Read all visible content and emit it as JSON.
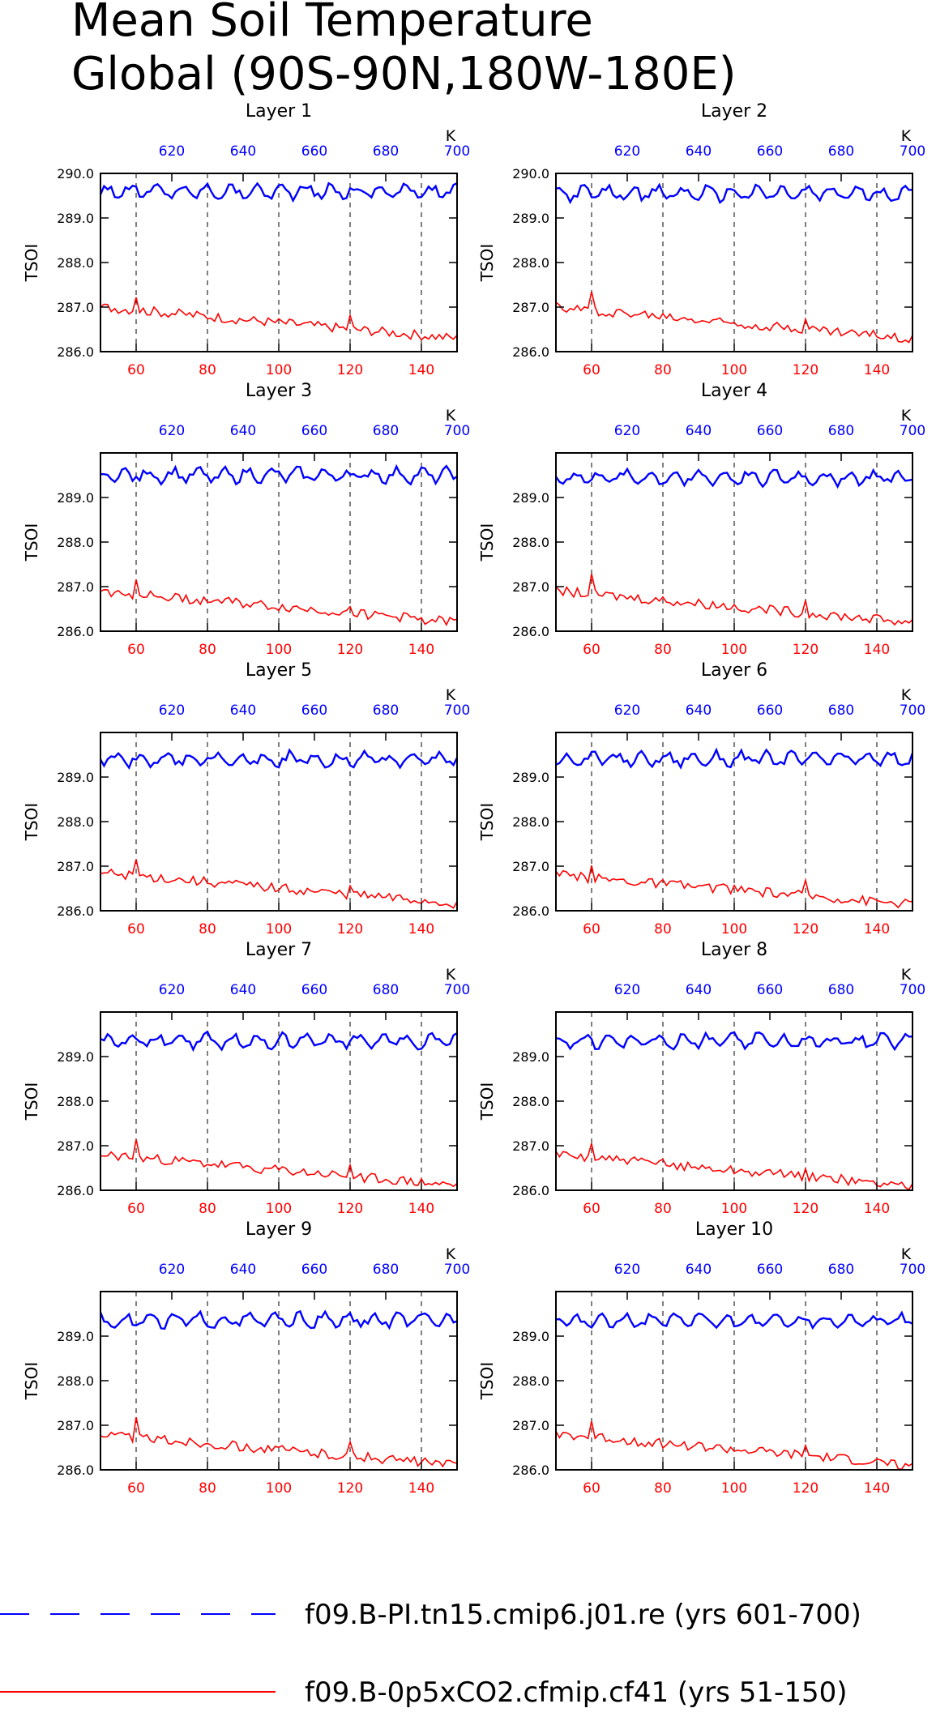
{
  "page": {
    "title_line1": "Mean Soil Temperature",
    "title_line2": "Global (90S-90N,180W-180E)"
  },
  "colors": {
    "series_a": "#0000ff",
    "series_b": "#ff0000",
    "axis": "#000000"
  },
  "legend": [
    {
      "name": "f09.B-PI.tn15.cmip6.j01.re (yrs 601-700)",
      "style": "dashed",
      "color": "#0000ff"
    },
    {
      "name": "f09.B-0p5xCO2.cfmip.cf41 (yrs 51-150)",
      "style": "solid",
      "color": "#ff0000"
    }
  ],
  "chart_data": [
    {
      "type": "line",
      "title": "Layer 1",
      "ylabel": "TSOI",
      "ylim": [
        286.0,
        290.0
      ],
      "yticks": [
        "286.0",
        "287.0",
        "288.0",
        "289.0",
        "290.0"
      ],
      "xlim": [
        50,
        150
      ],
      "xticks": [
        "60",
        "80",
        "100",
        "120",
        "140"
      ],
      "x2lim": [
        600,
        700
      ],
      "x2ticks": [
        "620",
        "640",
        "660",
        "680",
        "700"
      ],
      "x2unit": "K",
      "grid": "dashed vertical",
      "series": [
        {
          "x_axis": "top",
          "mean": 289.6,
          "amp": 0.15
        },
        {
          "x_axis": "bottom",
          "start": 287.0,
          "end": 286.3
        }
      ]
    },
    {
      "type": "line",
      "title": "Layer 2",
      "ylabel": "TSOI",
      "ylim": [
        286.0,
        290.0
      ],
      "yticks": [
        "286.0",
        "287.0",
        "288.0",
        "289.0",
        "290.0"
      ],
      "xlim": [
        50,
        150
      ],
      "xticks": [
        "60",
        "80",
        "100",
        "120",
        "140"
      ],
      "x2lim": [
        600,
        700
      ],
      "x2ticks": [
        "620",
        "640",
        "660",
        "680",
        "700"
      ],
      "x2unit": "K",
      "grid": "dashed vertical",
      "series": [
        {
          "x_axis": "top",
          "mean": 289.55,
          "amp": 0.15
        },
        {
          "x_axis": "bottom",
          "start": 287.0,
          "end": 286.3
        }
      ]
    },
    {
      "type": "line",
      "title": "Layer 3",
      "ylabel": "TSOI",
      "ylim": [
        286.0,
        290.0
      ],
      "yticks": [
        "286.0",
        "287.0",
        "288.0",
        "289.0"
      ],
      "xlim": [
        50,
        150
      ],
      "xticks": [
        "60",
        "80",
        "100",
        "120",
        "140"
      ],
      "x2lim": [
        600,
        700
      ],
      "x2ticks": [
        "620",
        "640",
        "660",
        "680",
        "700"
      ],
      "x2unit": "K",
      "grid": "dashed vertical",
      "series": [
        {
          "x_axis": "top",
          "mean": 289.5,
          "amp": 0.15
        },
        {
          "x_axis": "bottom",
          "start": 286.9,
          "end": 286.2
        }
      ]
    },
    {
      "type": "line",
      "title": "Layer 4",
      "ylabel": "TSOI",
      "ylim": [
        286.0,
        290.0
      ],
      "yticks": [
        "286.0",
        "287.0",
        "288.0",
        "289.0"
      ],
      "xlim": [
        50,
        150
      ],
      "xticks": [
        "60",
        "80",
        "100",
        "120",
        "140"
      ],
      "x2lim": [
        600,
        700
      ],
      "x2ticks": [
        "620",
        "640",
        "660",
        "680",
        "700"
      ],
      "x2unit": "K",
      "grid": "dashed vertical",
      "series": [
        {
          "x_axis": "top",
          "mean": 289.45,
          "amp": 0.15
        },
        {
          "x_axis": "bottom",
          "start": 286.9,
          "end": 286.2
        }
      ]
    },
    {
      "type": "line",
      "title": "Layer 5",
      "ylabel": "TSOI",
      "ylim": [
        286.0,
        290.0
      ],
      "yticks": [
        "286.0",
        "287.0",
        "288.0",
        "289.0"
      ],
      "xlim": [
        50,
        150
      ],
      "xticks": [
        "60",
        "80",
        "100",
        "120",
        "140"
      ],
      "x2lim": [
        600,
        700
      ],
      "x2ticks": [
        "620",
        "640",
        "660",
        "680",
        "700"
      ],
      "x2unit": "K",
      "grid": "dashed vertical",
      "series": [
        {
          "x_axis": "top",
          "mean": 289.4,
          "amp": 0.15
        },
        {
          "x_axis": "bottom",
          "start": 286.85,
          "end": 286.15
        }
      ]
    },
    {
      "type": "line",
      "title": "Layer 6",
      "ylabel": "TSOI",
      "ylim": [
        286.0,
        290.0
      ],
      "yticks": [
        "286.0",
        "287.0",
        "288.0",
        "289.0"
      ],
      "xlim": [
        50,
        150
      ],
      "xticks": [
        "60",
        "80",
        "100",
        "120",
        "140"
      ],
      "x2lim": [
        600,
        700
      ],
      "x2ticks": [
        "620",
        "640",
        "660",
        "680",
        "700"
      ],
      "x2unit": "K",
      "grid": "dashed vertical",
      "series": [
        {
          "x_axis": "top",
          "mean": 289.4,
          "amp": 0.15
        },
        {
          "x_axis": "bottom",
          "start": 286.8,
          "end": 286.15
        }
      ]
    },
    {
      "type": "line",
      "title": "Layer 7",
      "ylabel": "TSOI",
      "ylim": [
        286.0,
        290.0
      ],
      "yticks": [
        "286.0",
        "287.0",
        "288.0",
        "289.0"
      ],
      "xlim": [
        50,
        150
      ],
      "xticks": [
        "60",
        "80",
        "100",
        "120",
        "140"
      ],
      "x2lim": [
        600,
        700
      ],
      "x2ticks": [
        "620",
        "640",
        "660",
        "680",
        "700"
      ],
      "x2unit": "K",
      "grid": "dashed vertical",
      "series": [
        {
          "x_axis": "top",
          "mean": 289.35,
          "amp": 0.15
        },
        {
          "x_axis": "bottom",
          "start": 286.8,
          "end": 286.1
        }
      ]
    },
    {
      "type": "line",
      "title": "Layer 8",
      "ylabel": "TSOI",
      "ylim": [
        286.0,
        290.0
      ],
      "yticks": [
        "286.0",
        "287.0",
        "288.0",
        "289.0"
      ],
      "xlim": [
        50,
        150
      ],
      "xticks": [
        "60",
        "80",
        "100",
        "120",
        "140"
      ],
      "x2lim": [
        600,
        700
      ],
      "x2ticks": [
        "620",
        "640",
        "660",
        "680",
        "700"
      ],
      "x2unit": "K",
      "grid": "dashed vertical",
      "series": [
        {
          "x_axis": "top",
          "mean": 289.35,
          "amp": 0.15
        },
        {
          "x_axis": "bottom",
          "start": 286.8,
          "end": 286.1
        }
      ]
    },
    {
      "type": "line",
      "title": "Layer 9",
      "ylabel": "TSOI",
      "ylim": [
        286.0,
        290.0
      ],
      "yticks": [
        "286.0",
        "287.0",
        "288.0",
        "289.0"
      ],
      "xlim": [
        50,
        150
      ],
      "xticks": [
        "60",
        "80",
        "100",
        "120",
        "140"
      ],
      "x2lim": [
        600,
        700
      ],
      "x2ticks": [
        "620",
        "640",
        "660",
        "680",
        "700"
      ],
      "x2unit": "K",
      "grid": "dashed vertical",
      "series": [
        {
          "x_axis": "top",
          "mean": 289.35,
          "amp": 0.15
        },
        {
          "x_axis": "bottom",
          "start": 286.8,
          "end": 286.1
        }
      ]
    },
    {
      "type": "line",
      "title": "Layer 10",
      "ylabel": "TSOI",
      "ylim": [
        286.0,
        290.0
      ],
      "yticks": [
        "286.0",
        "287.0",
        "288.0",
        "289.0"
      ],
      "xlim": [
        50,
        150
      ],
      "xticks": [
        "60",
        "80",
        "100",
        "120",
        "140"
      ],
      "x2lim": [
        600,
        700
      ],
      "x2ticks": [
        "620",
        "640",
        "660",
        "680",
        "700"
      ],
      "x2unit": "K",
      "grid": "dashed vertical",
      "series": [
        {
          "x_axis": "top",
          "mean": 289.35,
          "amp": 0.15
        },
        {
          "x_axis": "bottom",
          "start": 286.8,
          "end": 286.1
        }
      ]
    }
  ]
}
